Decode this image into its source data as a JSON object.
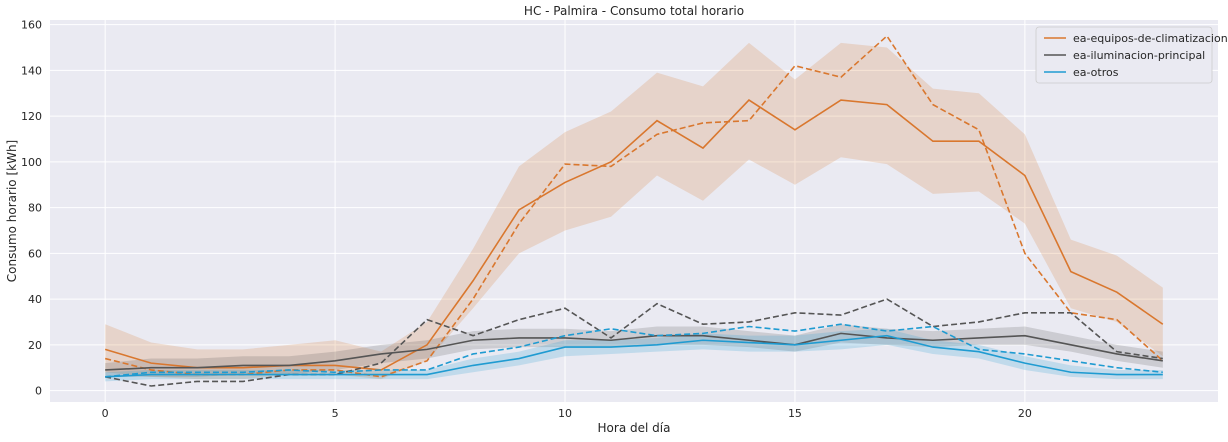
{
  "chart_data": {
    "type": "line",
    "title": "HC - Palmira - Consumo total horario",
    "xlabel": "Hora del día",
    "ylabel": "Consumo horario [kWh]",
    "xlim": [
      -1.2,
      24.2
    ],
    "ylim": [
      -5,
      162
    ],
    "xticks": [
      0,
      5,
      10,
      15,
      20
    ],
    "yticks": [
      0,
      20,
      40,
      60,
      80,
      100,
      120,
      140,
      160
    ],
    "grid": true,
    "legend_position": "top-right",
    "x": [
      0,
      1,
      2,
      3,
      4,
      5,
      6,
      7,
      8,
      9,
      10,
      11,
      12,
      13,
      14,
      15,
      16,
      17,
      18,
      19,
      20,
      21,
      22,
      23
    ],
    "series": [
      {
        "name": "ea-equipos-de-climatizacion",
        "color": "#d9772e",
        "mean": [
          18,
          12,
          10,
          10,
          11,
          11,
          9,
          20,
          48,
          79,
          91,
          100,
          118,
          106,
          127,
          114,
          127,
          125,
          109,
          109,
          94,
          52,
          43,
          29
        ],
        "lower": [
          8,
          6,
          5,
          5,
          7,
          7,
          5,
          13,
          36,
          60,
          70,
          76,
          94,
          83,
          101,
          90,
          102,
          99,
          86,
          87,
          73,
          36,
          30,
          15
        ],
        "upper": [
          29,
          21,
          18,
          18,
          20,
          22,
          17,
          30,
          62,
          98,
          113,
          122,
          139,
          133,
          152,
          136,
          152,
          150,
          132,
          130,
          112,
          66,
          59,
          45
        ],
        "dashed": [
          14,
          9,
          7,
          7,
          9,
          9,
          6,
          13,
          40,
          73,
          99,
          98,
          112,
          117,
          118,
          142,
          137,
          155,
          125,
          114,
          60,
          34,
          31,
          13
        ]
      },
      {
        "name": "ea-iluminacion-principal",
        "color": "#555555",
        "mean": [
          9,
          10,
          10,
          11,
          11,
          13,
          16,
          18,
          22,
          23,
          23,
          22,
          24,
          24,
          22,
          20,
          25,
          23,
          22,
          23,
          24,
          20,
          16,
          13
        ],
        "lower": [
          6,
          6,
          6,
          7,
          7,
          9,
          12,
          14,
          18,
          19,
          19,
          19,
          20,
          20,
          19,
          17,
          21,
          20,
          19,
          20,
          20,
          17,
          13,
          10
        ],
        "upper": [
          12,
          14,
          14,
          15,
          15,
          17,
          20,
          22,
          26,
          27,
          27,
          26,
          28,
          28,
          26,
          24,
          29,
          27,
          26,
          27,
          28,
          24,
          20,
          17
        ],
        "dashed": [
          6,
          2,
          4,
          4,
          7,
          7,
          12,
          31,
          24,
          31,
          36,
          23,
          38,
          29,
          30,
          34,
          33,
          40,
          28,
          30,
          34,
          34,
          17,
          14
        ]
      },
      {
        "name": "ea-otros",
        "color": "#1f9bd1",
        "mean": [
          6,
          7,
          7,
          7,
          7,
          7,
          7,
          7,
          11,
          14,
          19,
          19,
          20,
          22,
          21,
          20,
          22,
          24,
          19,
          17,
          12,
          8,
          7,
          7
        ],
        "lower": [
          4,
          5,
          5,
          5,
          5,
          5,
          5,
          5,
          8,
          11,
          15,
          16,
          17,
          18,
          17,
          17,
          18,
          20,
          16,
          14,
          9,
          6,
          5,
          5
        ],
        "upper": [
          8,
          9,
          9,
          9,
          9,
          9,
          9,
          9,
          14,
          17,
          22,
          22,
          23,
          25,
          24,
          24,
          26,
          27,
          22,
          20,
          15,
          11,
          9,
          9
        ],
        "dashed": [
          6,
          8,
          8,
          8,
          9,
          8,
          9,
          9,
          16,
          19,
          24,
          27,
          24,
          25,
          28,
          26,
          29,
          26,
          28,
          18,
          16,
          13,
          10,
          8
        ]
      }
    ]
  }
}
